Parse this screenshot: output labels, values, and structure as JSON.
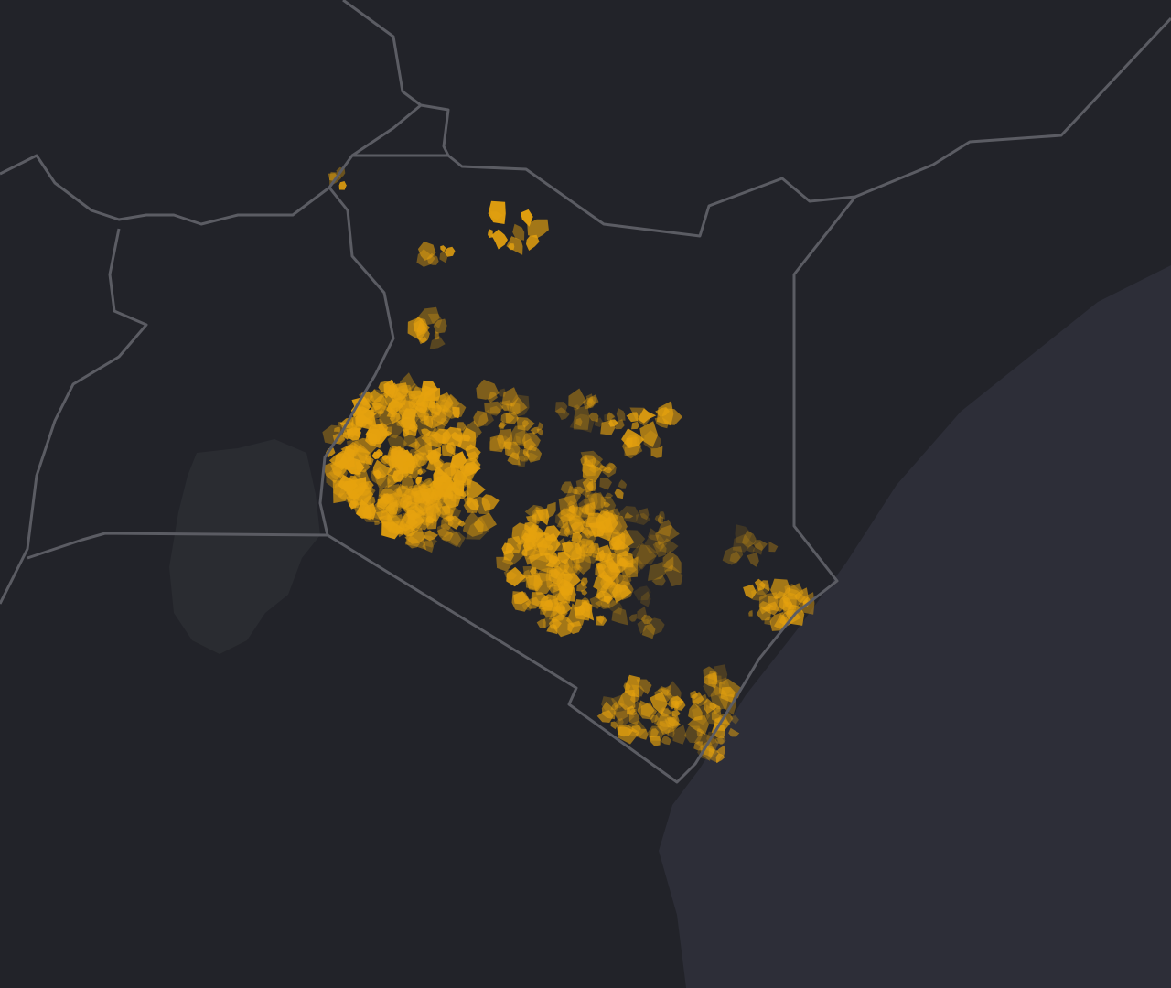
{
  "map": {
    "region": "Kenya",
    "layer": "choropleth",
    "colors": {
      "land": "#222329",
      "ocean": "#2d2e38",
      "lake": "#2a2c31",
      "border": "#5b5c63",
      "fill_high": "#e6a20e",
      "fill_low": "#4a3a1c"
    }
  }
}
